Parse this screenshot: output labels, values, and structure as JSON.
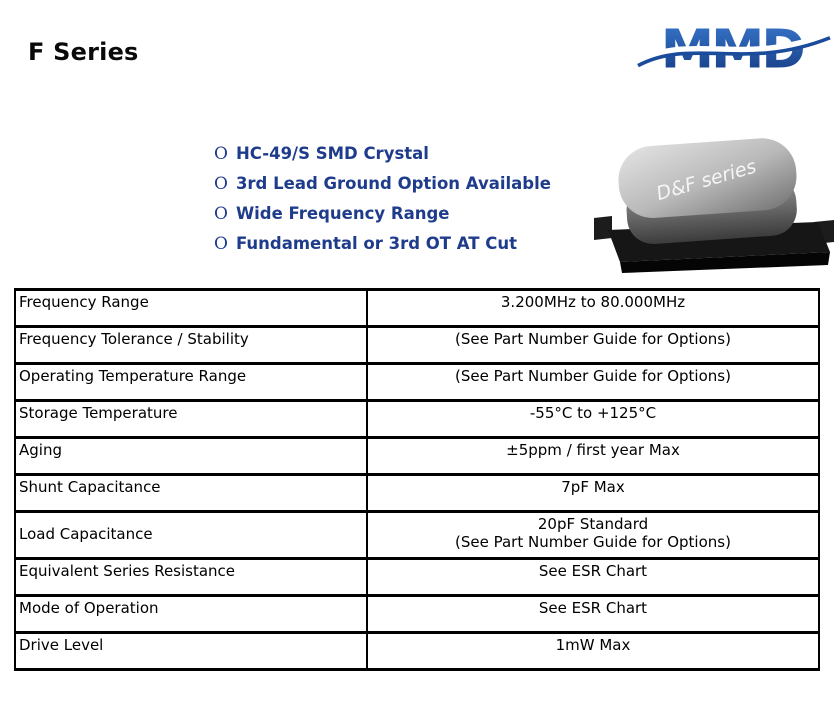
{
  "page": {
    "title": "F Series",
    "logo": {
      "text": "MMD",
      "color_top": "#3a7ad0",
      "color_bottom": "#14377e",
      "wave_color": "#1b4c9c"
    }
  },
  "features": {
    "bullet_char": "O",
    "color": "#1f3c8c",
    "items": [
      "HC-49/S SMD Crystal",
      "3rd Lead Ground Option Available",
      "Wide Frequency Range",
      "Fundamental or 3rd OT AT Cut"
    ]
  },
  "product_image": {
    "label": "D&F series"
  },
  "spec_table": {
    "rows": [
      {
        "parameter": "Frequency Range",
        "value": "3.200MHz to 80.000MHz"
      },
      {
        "parameter": "Frequency Tolerance / Stability",
        "value": "(See Part Number Guide for Options)"
      },
      {
        "parameter": "Operating Temperature Range",
        "value": "(See Part Number Guide for Options)"
      },
      {
        "parameter": "Storage Temperature",
        "value": "-55°C to +125°C"
      },
      {
        "parameter": "Aging",
        "value": "±5ppm / first year Max"
      },
      {
        "parameter": "Shunt Capacitance",
        "value": "7pF Max"
      },
      {
        "parameter": "Load Capacitance",
        "value": "20pF Standard\n(See Part Number Guide for Options)"
      },
      {
        "parameter": "Equivalent Series Resistance",
        "value": "See ESR Chart"
      },
      {
        "parameter": "Mode of Operation",
        "value": "See ESR Chart"
      },
      {
        "parameter": "Drive Level",
        "value": "1mW Max"
      }
    ]
  }
}
